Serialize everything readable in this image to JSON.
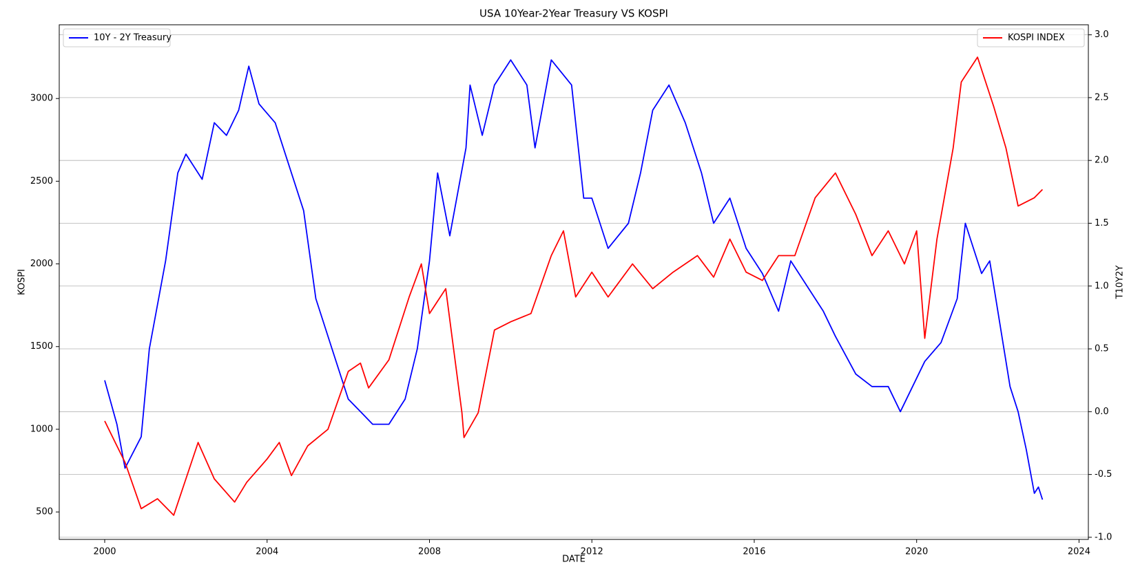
{
  "chart_data": {
    "type": "line",
    "title": "USA 10Year-2Year Treasury VS KOSPI",
    "x_label": "DATE",
    "y_label": "KOSPI",
    "y2_label": "T10Y2Y",
    "xlim": [
      1998.88,
      2024.23
    ],
    "xticks": [
      2000,
      2004,
      2008,
      2012,
      2016,
      2020,
      2024
    ],
    "ylim": [
      334,
      3446
    ],
    "yticks": [
      500,
      1000,
      1500,
      2000,
      2500,
      3000
    ],
    "y2lim": [
      -1.017,
      3.08
    ],
    "y2ticks": [
      {
        "value": -1,
        "label": "-1.0"
      },
      -0.5,
      {
        "value": 0,
        "label": "0.0"
      },
      0.5,
      {
        "value": 1,
        "label": "1.0"
      },
      1.5,
      {
        "value": 2,
        "label": "2.0"
      },
      2.5,
      {
        "value": 3,
        "label": "3.0"
      }
    ],
    "grid": "y2",
    "series": [
      {
        "name": "10Y - 2Y Treasury",
        "color": "#0000ff",
        "axis": "y2",
        "legend": "upper left",
        "x": [
          2000.0,
          2000.3,
          2000.5,
          2000.9,
          2001.1,
          2001.5,
          2001.8,
          2002.0,
          2002.4,
          2002.7,
          2003.0,
          2003.3,
          2003.55,
          2003.8,
          2004.2,
          2004.5,
          2004.9,
          2005.2,
          2005.6,
          2006.0,
          2006.3,
          2006.6,
          2007.0,
          2007.4,
          2007.7,
          2008.0,
          2008.2,
          2008.5,
          2008.9,
          2009.0,
          2009.3,
          2009.6,
          2010.0,
          2010.4,
          2010.6,
          2011.0,
          2011.5,
          2011.8,
          2012.0,
          2012.4,
          2012.9,
          2013.2,
          2013.5,
          2013.9,
          2014.3,
          2014.7,
          2015.0,
          2015.4,
          2015.8,
          2016.2,
          2016.6,
          2016.9,
          2017.3,
          2017.7,
          2018.0,
          2018.5,
          2018.9,
          2019.3,
          2019.6,
          2019.9,
          2020.2,
          2020.6,
          2021.0,
          2021.2,
          2021.6,
          2021.8,
          2022.0,
          2022.3,
          2022.5,
          2022.7,
          2022.9,
          2023.0,
          2023.1
        ],
        "values": [
          0.25,
          -0.1,
          -0.45,
          -0.2,
          0.5,
          1.2,
          1.9,
          2.05,
          1.85,
          2.3,
          2.2,
          2.4,
          2.75,
          2.45,
          2.3,
          2.0,
          1.6,
          0.9,
          0.5,
          0.1,
          0.0,
          -0.1,
          -0.1,
          0.1,
          0.5,
          1.2,
          1.9,
          1.4,
          2.1,
          2.6,
          2.2,
          2.6,
          2.8,
          2.6,
          2.1,
          2.8,
          2.6,
          1.7,
          1.7,
          1.3,
          1.5,
          1.9,
          2.4,
          2.6,
          2.3,
          1.9,
          1.5,
          1.7,
          1.3,
          1.1,
          0.8,
          1.2,
          1.0,
          0.8,
          0.6,
          0.3,
          0.2,
          0.2,
          0.0,
          0.2,
          0.4,
          0.55,
          0.9,
          1.5,
          1.1,
          1.2,
          0.8,
          0.2,
          0.0,
          -0.3,
          -0.65,
          -0.6,
          -0.7
        ]
      },
      {
        "name": "KOSPI INDEX",
        "color": "#ff0000",
        "axis": "y",
        "legend": "upper right",
        "x": [
          2000.0,
          2000.3,
          2000.5,
          2000.9,
          2001.3,
          2001.7,
          2002.0,
          2002.3,
          2002.7,
          2003.2,
          2003.5,
          2004.0,
          2004.3,
          2004.6,
          2005.0,
          2005.5,
          2006.0,
          2006.3,
          2006.5,
          2007.0,
          2007.5,
          2007.8,
          2008.0,
          2008.4,
          2008.8,
          2008.85,
          2009.2,
          2009.6,
          2010.0,
          2010.5,
          2011.0,
          2011.3,
          2011.6,
          2012.0,
          2012.4,
          2013.0,
          2013.5,
          2014.0,
          2014.6,
          2015.0,
          2015.4,
          2015.8,
          2016.2,
          2016.6,
          2017.0,
          2017.5,
          2018.0,
          2018.5,
          2018.9,
          2019.3,
          2019.7,
          2020.0,
          2020.2,
          2020.5,
          2020.9,
          2021.1,
          2021.5,
          2021.9,
          2022.2,
          2022.5,
          2022.9,
          2023.1
        ],
        "values": [
          1050,
          900,
          800,
          520,
          580,
          480,
          700,
          920,
          700,
          560,
          680,
          820,
          920,
          720,
          900,
          1000,
          1350,
          1400,
          1250,
          1420,
          1800,
          2000,
          1700,
          1850,
          1100,
          950,
          1100,
          1600,
          1650,
          1700,
          2050,
          2200,
          1800,
          1950,
          1800,
          2000,
          1850,
          1950,
          2050,
          1920,
          2150,
          1950,
          1900,
          2050,
          2050,
          2400,
          2550,
          2300,
          2050,
          2200,
          2000,
          2200,
          1550,
          2150,
          2700,
          3100,
          3250,
          2950,
          2700,
          2350,
          2400,
          2450
        ]
      }
    ]
  }
}
